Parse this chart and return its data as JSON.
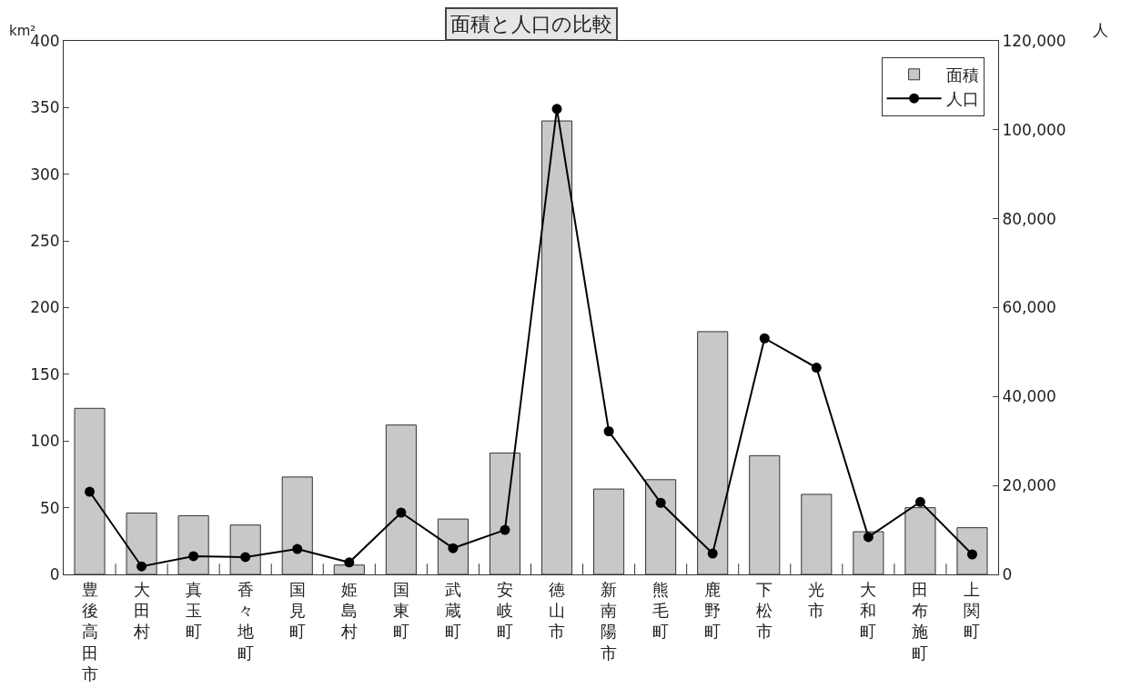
{
  "chart_data": {
    "type": "bar",
    "title": "面積と人口の比較",
    "ylabel": "km²",
    "y2label": "人",
    "categories": [
      "豊後高田市",
      "大田村",
      "真玉町",
      "香々地町",
      "国見町",
      "姫島村",
      "国東町",
      "武蔵町",
      "安岐町",
      "徳山市",
      "新南陽市",
      "熊毛町",
      "鹿野町",
      "下松市",
      "光市",
      "大和町",
      "田布施町",
      "上関町"
    ],
    "series": [
      {
        "name": "面積",
        "color": "#c8c8c8",
        "values": [
          124.5,
          46,
          44,
          37,
          73,
          7,
          112,
          41.5,
          91,
          340,
          64,
          71,
          182,
          89,
          60,
          32,
          50,
          35
        ]
      },
      {
        "name": "人口",
        "type": "line",
        "axis": "y2",
        "color": "#000000",
        "marker": "circle",
        "values": [
          18600,
          1800,
          4100,
          3900,
          5700,
          2700,
          13900,
          5900,
          10000,
          104700,
          32200,
          16100,
          4700,
          53100,
          46500,
          8400,
          16300,
          4500
        ]
      }
    ],
    "ylim": [
      0,
      400
    ],
    "yticks": [
      0,
      50,
      100,
      150,
      200,
      250,
      300,
      350,
      400
    ],
    "y2lim": [
      0,
      120000
    ],
    "y2ticks": [
      0,
      {
        "value": 20000,
        "label": "20,000"
      },
      {
        "value": 40000,
        "label": "40,000"
      },
      {
        "value": 60000,
        "label": "60,000"
      },
      {
        "value": 80000,
        "label": "80,000"
      },
      {
        "value": 100000,
        "label": "100,000"
      },
      {
        "value": 120000,
        "label": "120,000"
      }
    ],
    "grid": false,
    "legend": "top right"
  }
}
